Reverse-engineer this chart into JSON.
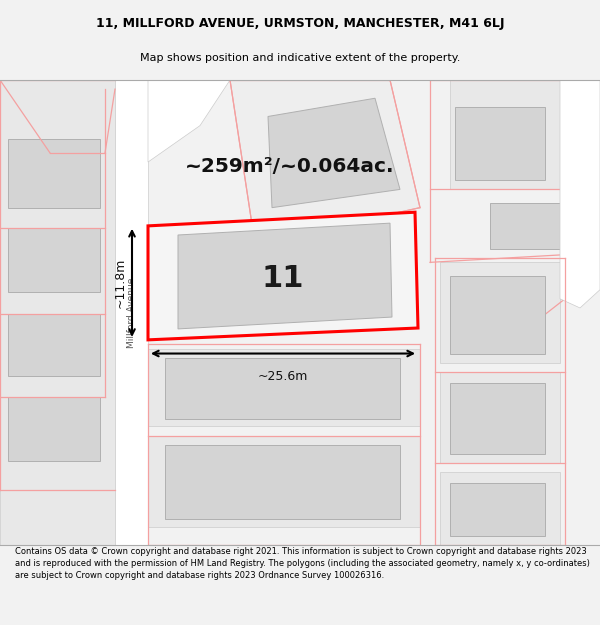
{
  "title_line1": "11, MILLFORD AVENUE, URMSTON, MANCHESTER, M41 6LJ",
  "title_line2": "Map shows position and indicative extent of the property.",
  "footer_text": "Contains OS data © Crown copyright and database right 2021. This information is subject to Crown copyright and database rights 2023 and is reproduced with the permission of HM Land Registry. The polygons (including the associated geometry, namely x, y co-ordinates) are subject to Crown copyright and database rights 2023 Ordnance Survey 100026316.",
  "area_label": "~259m²/~0.064ac.",
  "number_label": "11",
  "dim_width": "~25.6m",
  "dim_height": "~11.8m",
  "road_label": "Millford Avenue",
  "map_bg": "#f2f2f2",
  "plot_edge_color": "#ff0000",
  "building_fill": "#d4d4d4",
  "building_edge": "#b0b0b0",
  "road_fill": "#ffffff",
  "light_red": "#f4a0a0",
  "title_bg": "#f2f2f2",
  "footer_bg": "#f2f2f2"
}
